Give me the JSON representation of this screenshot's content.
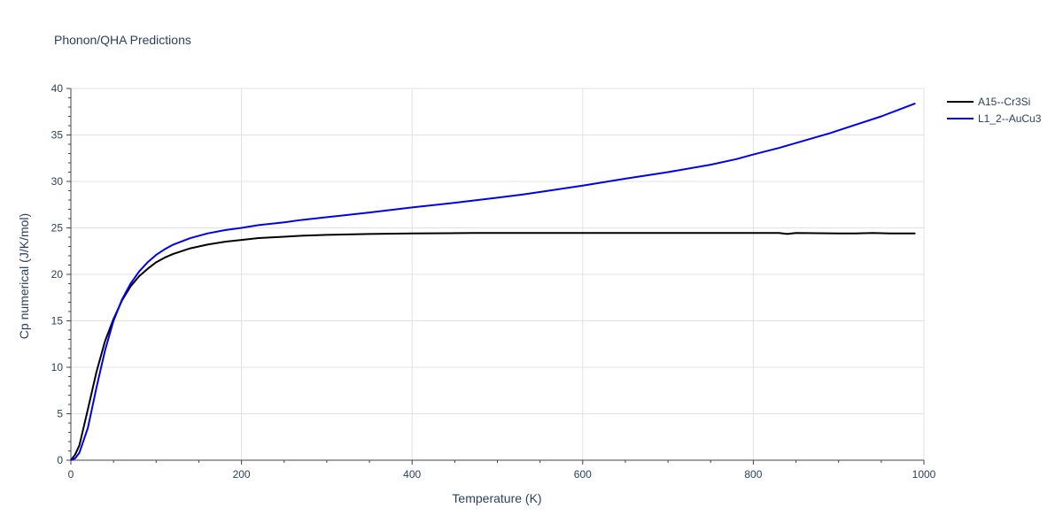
{
  "chart_data": {
    "type": "line",
    "title": "Phonon/QHA Predictions",
    "xlabel": "Temperature (K)",
    "ylabel": "Cp numerical (J/K/mol)",
    "xlim": [
      0,
      1000
    ],
    "ylim": [
      0,
      40
    ],
    "xticks": [
      0,
      200,
      400,
      600,
      800,
      1000
    ],
    "yticks": [
      0,
      5,
      10,
      15,
      20,
      25,
      30,
      35,
      40
    ],
    "grid": true,
    "legend_position": "top-right",
    "series": [
      {
        "name": "A15--Cr3Si",
        "color": "#000000",
        "x": [
          0,
          5,
          10,
          20,
          30,
          40,
          50,
          60,
          70,
          80,
          90,
          100,
          110,
          120,
          140,
          160,
          180,
          200,
          220,
          250,
          270,
          300,
          350,
          400,
          470,
          500,
          600,
          700,
          740,
          780,
          800,
          830,
          840,
          850,
          900,
          920,
          940,
          960,
          990
        ],
        "y": [
          0,
          0.6,
          1.6,
          5.5,
          9.5,
          12.8,
          15.2,
          17.2,
          18.7,
          19.8,
          20.6,
          21.3,
          21.8,
          22.2,
          22.8,
          23.2,
          23.5,
          23.7,
          23.9,
          24.05,
          24.15,
          24.25,
          24.35,
          24.4,
          24.45,
          24.45,
          24.45,
          24.45,
          24.45,
          24.45,
          24.45,
          24.45,
          24.35,
          24.45,
          24.4,
          24.4,
          24.45,
          24.4,
          24.4
        ]
      },
      {
        "name": "L1_2--AuCu3",
        "color": "#0000ee",
        "x": [
          0,
          5,
          10,
          20,
          30,
          40,
          50,
          60,
          70,
          80,
          90,
          100,
          110,
          120,
          140,
          160,
          180,
          200,
          220,
          250,
          270,
          300,
          350,
          400,
          450,
          500,
          530,
          560,
          600,
          650,
          700,
          750,
          780,
          800,
          830,
          860,
          890,
          920,
          950,
          970,
          990
        ],
        "y": [
          0,
          0.2,
          0.8,
          3.5,
          7.8,
          11.8,
          15.0,
          17.3,
          19.0,
          20.3,
          21.3,
          22.1,
          22.7,
          23.2,
          23.9,
          24.4,
          24.75,
          25.0,
          25.3,
          25.6,
          25.85,
          26.15,
          26.65,
          27.2,
          27.7,
          28.25,
          28.6,
          29.0,
          29.55,
          30.3,
          31.0,
          31.8,
          32.4,
          32.9,
          33.6,
          34.4,
          35.2,
          36.1,
          37.0,
          37.7,
          38.4
        ]
      }
    ]
  }
}
